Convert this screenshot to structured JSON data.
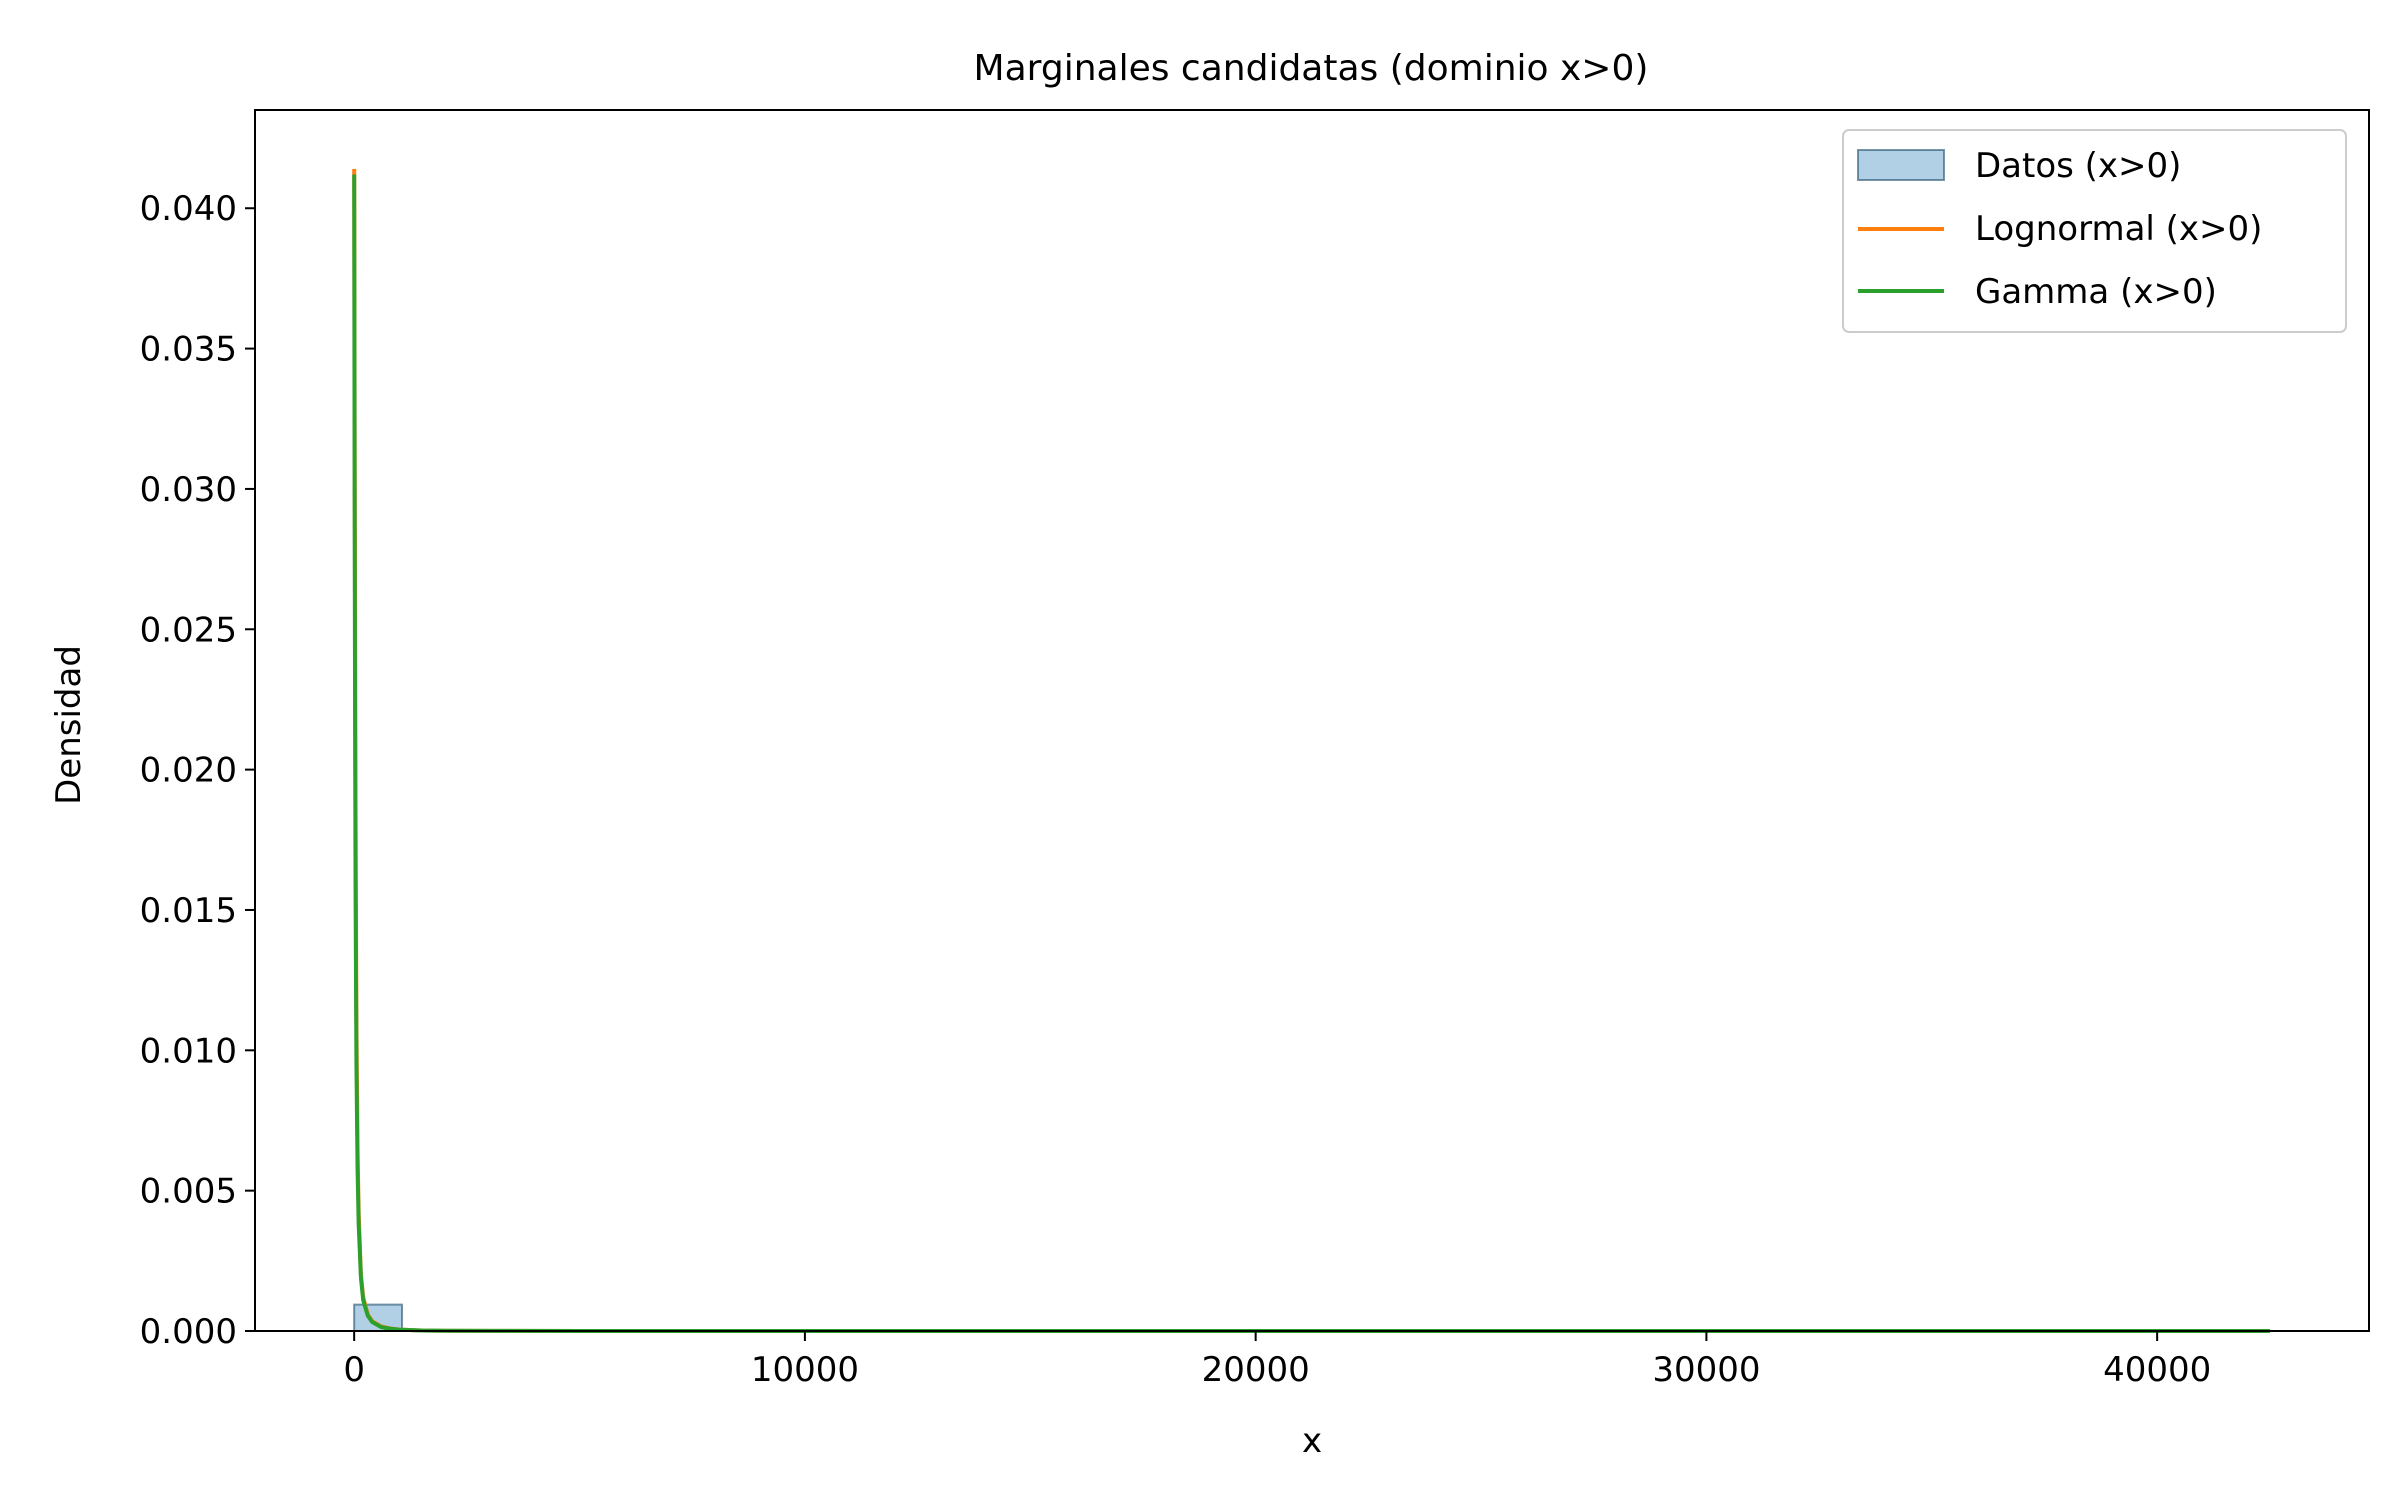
{
  "chart_data": {
    "type": "histogram+line",
    "title": "Marginales candidatas (dominio x>0)",
    "xlabel": "x",
    "ylabel": "Densidad",
    "xlim": [
      -2200,
      44700
    ],
    "ylim": [
      0,
      0.0435
    ],
    "x_ticks": [
      0,
      10000,
      20000,
      30000,
      40000
    ],
    "x_tick_labels": [
      "0",
      "10000",
      "20000",
      "30000",
      "40000"
    ],
    "y_ticks": [
      0.0,
      0.005,
      0.01,
      0.015,
      0.02,
      0.025,
      0.03,
      0.035,
      0.04
    ],
    "y_tick_labels": [
      "0.000",
      "0.005",
      "0.010",
      "0.015",
      "0.020",
      "0.025",
      "0.030",
      "0.035",
      "0.040"
    ],
    "grid": false,
    "legend_position": "top-right",
    "legend": [
      {
        "label": "Datos (x>0)",
        "kind": "patch"
      },
      {
        "label": "Lognormal (x>0)",
        "kind": "line"
      },
      {
        "label": "Gamma (x>0)",
        "kind": "line"
      }
    ],
    "histogram": {
      "name": "Datos (x>0)",
      "color": "#1f77b4",
      "bins": [
        {
          "x0": 0,
          "x1": 1062,
          "value": 0.00094
        },
        {
          "x0": 1062,
          "x1": 2124,
          "value": 1e-05
        },
        {
          "x0": 2124,
          "x1": 3186,
          "value": 0.0
        }
      ]
    },
    "series": [
      {
        "name": "Lognormal (x>0)",
        "color": "#ff7f0e",
        "x": [
          1,
          5,
          10,
          20,
          30,
          50,
          75,
          100,
          150,
          200,
          300,
          400,
          600,
          800,
          1000,
          1500,
          2000,
          3000,
          5000,
          10000,
          20000,
          30000,
          42500
        ],
        "y": [
          0.0414,
          0.038,
          0.033,
          0.025,
          0.019,
          0.011,
          0.0065,
          0.0042,
          0.002,
          0.0012,
          0.0006,
          0.00035,
          0.00016,
          9e-05,
          5e-05,
          2e-05,
          1e-05,
          4e-06,
          1e-06,
          0.0,
          0.0,
          0.0,
          0.0
        ]
      },
      {
        "name": "Gamma (x>0)",
        "color": "#2ca02c",
        "x": [
          1,
          5,
          10,
          20,
          30,
          50,
          75,
          100,
          150,
          200,
          300,
          400,
          600,
          800,
          1000,
          1500,
          2000,
          3000,
          5000,
          10000,
          20000,
          30000,
          42500
        ],
        "y": [
          0.0412,
          0.036,
          0.03,
          0.022,
          0.016,
          0.0095,
          0.0058,
          0.0038,
          0.0019,
          0.0011,
          0.00055,
          0.00032,
          0.00014,
          8e-05,
          5e-05,
          2e-05,
          1e-05,
          4e-06,
          1e-06,
          0.0,
          0.0,
          0.0,
          0.0
        ]
      }
    ]
  }
}
